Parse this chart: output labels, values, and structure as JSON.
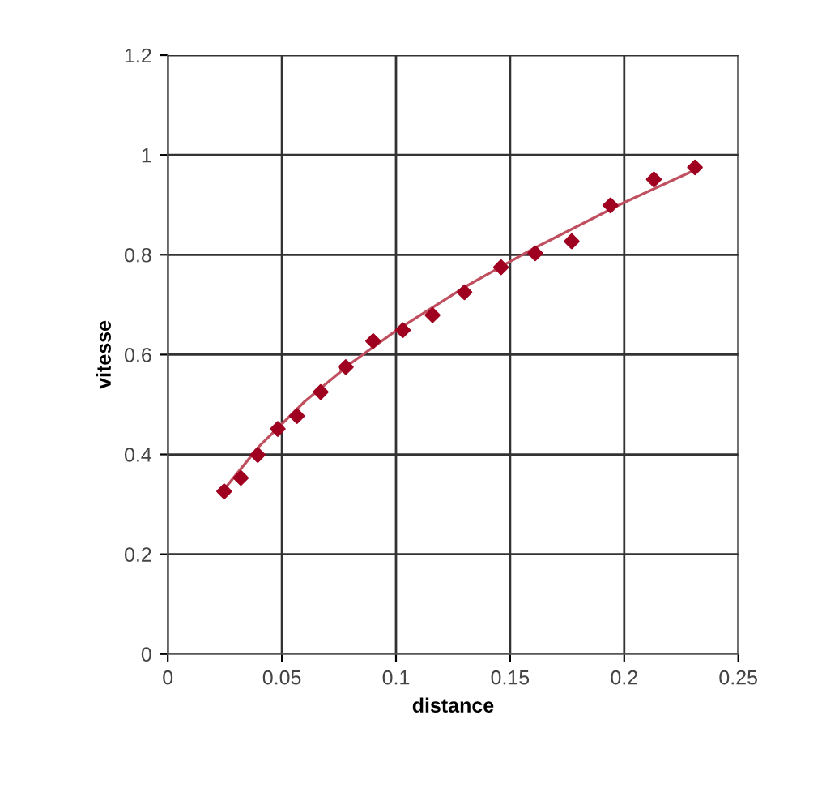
{
  "chart_data": {
    "type": "scatter",
    "xlabel": "distance",
    "ylabel": "vitesse",
    "xlim": [
      0,
      0.25
    ],
    "xticks": [
      0,
      0.05,
      0.1,
      0.15,
      0.2,
      0.25
    ],
    "ylim": [
      0,
      1.2
    ],
    "yticks": [
      0,
      0.2,
      0.4,
      0.6,
      0.8,
      1,
      1.2
    ],
    "grid": true,
    "series": [
      {
        "color": "#a00020",
        "marker": "diamond",
        "x": [
          0.0247,
          0.032,
          0.0394,
          0.0482,
          0.0566,
          0.067,
          0.078,
          0.09,
          0.103,
          0.116,
          0.13,
          0.146,
          0.161,
          0.177,
          0.194,
          0.213,
          0.231
        ],
        "values": [
          0.326,
          0.353,
          0.399,
          0.451,
          0.477,
          0.525,
          0.575,
          0.627,
          0.649,
          0.679,
          0.725,
          0.775,
          0.803,
          0.827,
          0.899,
          0.951,
          0.975
        ]
      },
      {
        "type": "line",
        "color": "#c05060",
        "marker": "none",
        "line_style": "solid",
        "x": [
          0.0247,
          0.04,
          0.06,
          0.08,
          0.1,
          0.13,
          0.16,
          0.2,
          0.231
        ],
        "values": [
          0.33,
          0.416,
          0.506,
          0.582,
          0.648,
          0.735,
          0.812,
          0.905,
          0.97
        ]
      }
    ]
  }
}
